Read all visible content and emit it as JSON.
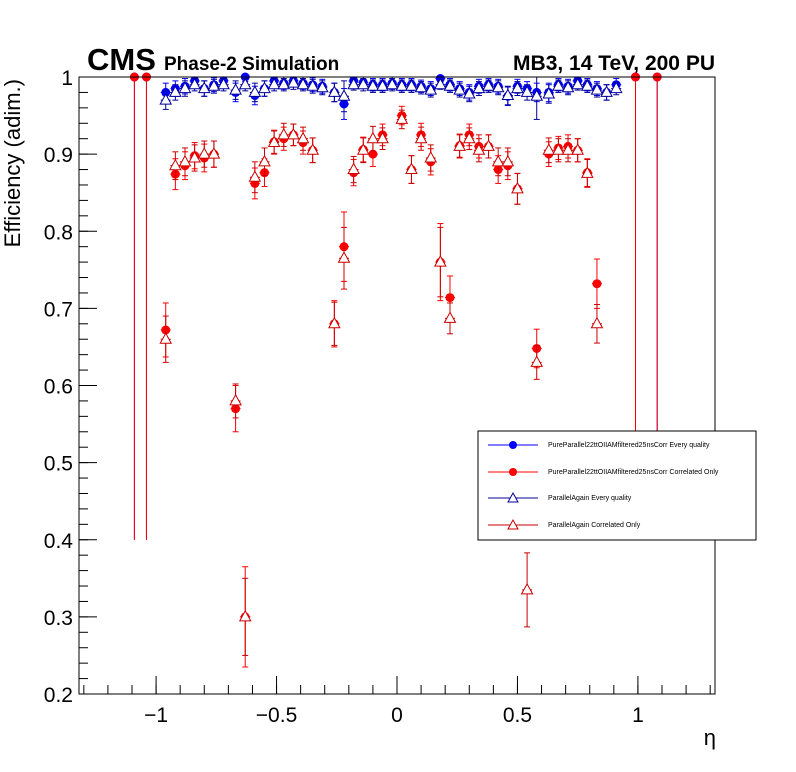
{
  "header": {
    "experiment": "CMS",
    "subtitle": "Phase-2 Simulation",
    "info": "MB3, 14 TeV, 200 PU"
  },
  "colors": {
    "blue": "#0000ff",
    "navy": "#000099",
    "red": "#ff0000",
    "darkred": "#cc0000"
  },
  "chart_data": {
    "type": "scatter",
    "title": "",
    "xlabel": "η",
    "ylabel": "Efficiency (adim.)",
    "xlim": [
      -1.32,
      1.32
    ],
    "ylim": [
      0.2,
      1.0
    ],
    "x_ticks": [
      -1,
      -0.5,
      0,
      0.5,
      1
    ],
    "x_tick_labels": [
      "−1",
      "−0.5",
      "0",
      "0.5",
      "1"
    ],
    "y_ticks": [
      0.2,
      0.3,
      0.4,
      0.5,
      0.6,
      0.7,
      0.8,
      0.9,
      1.0
    ],
    "y_tick_labels": [
      "0.2",
      "0.3",
      "0.4",
      "0.5",
      "0.6",
      "0.7",
      "0.8",
      "0.9",
      "1"
    ],
    "legend_position": "right-middle",
    "series": [
      {
        "name": "PureParallel22ttOIIAMfiltered25nsCorr Every quality",
        "marker": "circle",
        "color": "#0000ff",
        "points": [
          {
            "x": -1.09,
            "y": 1.0,
            "err": 0.6
          },
          {
            "x": -1.04,
            "y": 1.0,
            "err": 0.6
          },
          {
            "x": -0.96,
            "y": 0.98,
            "err": 0.012
          },
          {
            "x": -0.92,
            "y": 0.985,
            "err": 0.01
          },
          {
            "x": -0.88,
            "y": 0.988,
            "err": 0.01
          },
          {
            "x": -0.84,
            "y": 0.995,
            "err": 0.008
          },
          {
            "x": -0.8,
            "y": 0.985,
            "err": 0.01
          },
          {
            "x": -0.76,
            "y": 0.99,
            "err": 0.009
          },
          {
            "x": -0.72,
            "y": 0.995,
            "err": 0.008
          },
          {
            "x": -0.67,
            "y": 0.98,
            "err": 0.012
          },
          {
            "x": -0.63,
            "y": 1.0,
            "err": 0.006
          },
          {
            "x": -0.59,
            "y": 0.976,
            "err": 0.012
          },
          {
            "x": -0.55,
            "y": 0.985,
            "err": 0.01
          },
          {
            "x": -0.51,
            "y": 0.995,
            "err": 0.008
          },
          {
            "x": -0.47,
            "y": 0.992,
            "err": 0.008
          },
          {
            "x": -0.43,
            "y": 0.995,
            "err": 0.008
          },
          {
            "x": -0.39,
            "y": 0.992,
            "err": 0.008
          },
          {
            "x": -0.35,
            "y": 0.99,
            "err": 0.009
          },
          {
            "x": -0.31,
            "y": 0.988,
            "err": 0.009
          },
          {
            "x": -0.26,
            "y": 0.98,
            "err": 0.012
          },
          {
            "x": -0.22,
            "y": 0.965,
            "err": 0.02
          },
          {
            "x": -0.18,
            "y": 0.995,
            "err": 0.006
          },
          {
            "x": -0.14,
            "y": 0.993,
            "err": 0.008
          },
          {
            "x": -0.1,
            "y": 0.99,
            "err": 0.008
          },
          {
            "x": -0.06,
            "y": 0.99,
            "err": 0.008
          },
          {
            "x": -0.02,
            "y": 0.992,
            "err": 0.008
          },
          {
            "x": 0.02,
            "y": 0.99,
            "err": 0.008
          },
          {
            "x": 0.06,
            "y": 0.99,
            "err": 0.008
          },
          {
            "x": 0.1,
            "y": 0.988,
            "err": 0.008
          },
          {
            "x": 0.14,
            "y": 0.985,
            "err": 0.009
          },
          {
            "x": 0.18,
            "y": 0.998,
            "err": 0.005
          },
          {
            "x": 0.22,
            "y": 0.99,
            "err": 0.008
          },
          {
            "x": 0.26,
            "y": 0.985,
            "err": 0.009
          },
          {
            "x": 0.3,
            "y": 0.98,
            "err": 0.01
          },
          {
            "x": 0.34,
            "y": 0.988,
            "err": 0.009
          },
          {
            "x": 0.38,
            "y": 0.99,
            "err": 0.008
          },
          {
            "x": 0.42,
            "y": 0.988,
            "err": 0.009
          },
          {
            "x": 0.46,
            "y": 0.975,
            "err": 0.012
          },
          {
            "x": 0.5,
            "y": 0.988,
            "err": 0.009
          },
          {
            "x": 0.54,
            "y": 0.985,
            "err": 0.009
          },
          {
            "x": 0.58,
            "y": 0.98,
            "err": 0.012
          },
          {
            "x": 0.63,
            "y": 0.98,
            "err": 0.012
          },
          {
            "x": 0.67,
            "y": 0.99,
            "err": 0.008
          },
          {
            "x": 0.71,
            "y": 0.988,
            "err": 0.009
          },
          {
            "x": 0.75,
            "y": 0.995,
            "err": 0.007
          },
          {
            "x": 0.79,
            "y": 0.99,
            "err": 0.008
          },
          {
            "x": 0.83,
            "y": 0.985,
            "err": 0.009
          },
          {
            "x": 0.87,
            "y": 0.98,
            "err": 0.01
          },
          {
            "x": 0.91,
            "y": 0.99,
            "err": 0.008
          },
          {
            "x": 0.99,
            "y": 1.0,
            "err": 0.6
          },
          {
            "x": 1.08,
            "y": 1.0,
            "err": 0.6
          }
        ]
      },
      {
        "name": "PureParallel22ttOIIAMfiltered25nsCorr Correlated Only",
        "marker": "circle",
        "color": "#ff0000",
        "points": [
          {
            "x": -1.09,
            "y": 1.0,
            "err": 0.6
          },
          {
            "x": -1.04,
            "y": 1.0,
            "err": 0.6
          },
          {
            "x": -0.96,
            "y": 0.672,
            "err": 0.035
          },
          {
            "x": -0.92,
            "y": 0.874,
            "err": 0.02
          },
          {
            "x": -0.88,
            "y": 0.885,
            "err": 0.018
          },
          {
            "x": -0.84,
            "y": 0.898,
            "err": 0.017
          },
          {
            "x": -0.8,
            "y": 0.895,
            "err": 0.018
          },
          {
            "x": -0.76,
            "y": 0.9,
            "err": 0.017
          },
          {
            "x": -0.67,
            "y": 0.57,
            "err": 0.03
          },
          {
            "x": -0.63,
            "y": 0.3,
            "err": 0.065
          },
          {
            "x": -0.59,
            "y": 0.862,
            "err": 0.02
          },
          {
            "x": -0.55,
            "y": 0.876,
            "err": 0.018
          },
          {
            "x": -0.51,
            "y": 0.916,
            "err": 0.015
          },
          {
            "x": -0.47,
            "y": 0.92,
            "err": 0.015
          },
          {
            "x": -0.43,
            "y": 0.925,
            "err": 0.014
          },
          {
            "x": -0.39,
            "y": 0.915,
            "err": 0.015
          },
          {
            "x": -0.35,
            "y": 0.905,
            "err": 0.016
          },
          {
            "x": -0.26,
            "y": 0.68,
            "err": 0.03
          },
          {
            "x": -0.22,
            "y": 0.78,
            "err": 0.045
          },
          {
            "x": -0.18,
            "y": 0.876,
            "err": 0.017
          },
          {
            "x": -0.14,
            "y": 0.906,
            "err": 0.016
          },
          {
            "x": -0.1,
            "y": 0.9,
            "err": 0.016
          },
          {
            "x": -0.06,
            "y": 0.925,
            "err": 0.014
          },
          {
            "x": 0.02,
            "y": 0.95,
            "err": 0.012
          },
          {
            "x": 0.06,
            "y": 0.88,
            "err": 0.018
          },
          {
            "x": 0.1,
            "y": 0.925,
            "err": 0.015
          },
          {
            "x": 0.14,
            "y": 0.89,
            "err": 0.017
          },
          {
            "x": 0.18,
            "y": 0.76,
            "err": 0.05
          },
          {
            "x": 0.22,
            "y": 0.714,
            "err": 0.028
          },
          {
            "x": 0.26,
            "y": 0.911,
            "err": 0.015
          },
          {
            "x": 0.3,
            "y": 0.925,
            "err": 0.014
          },
          {
            "x": 0.34,
            "y": 0.91,
            "err": 0.015
          },
          {
            "x": 0.38,
            "y": 0.91,
            "err": 0.015
          },
          {
            "x": 0.42,
            "y": 0.88,
            "err": 0.018
          },
          {
            "x": 0.46,
            "y": 0.885,
            "err": 0.018
          },
          {
            "x": 0.5,
            "y": 0.855,
            "err": 0.02
          },
          {
            "x": 0.58,
            "y": 0.648,
            "err": 0.025
          },
          {
            "x": 0.63,
            "y": 0.9,
            "err": 0.016
          },
          {
            "x": 0.67,
            "y": 0.908,
            "err": 0.015
          },
          {
            "x": 0.71,
            "y": 0.91,
            "err": 0.015
          },
          {
            "x": 0.75,
            "y": 0.905,
            "err": 0.015
          },
          {
            "x": 0.79,
            "y": 0.876,
            "err": 0.018
          },
          {
            "x": 0.83,
            "y": 0.732,
            "err": 0.032
          },
          {
            "x": 0.99,
            "y": 1.0,
            "err": 0.6
          },
          {
            "x": 1.08,
            "y": 1.0,
            "err": 0.6
          }
        ]
      },
      {
        "name": "ParallelAgain Every quality",
        "marker": "triangle-open",
        "color": "#000099",
        "points": [
          {
            "x": -0.96,
            "y": 0.97,
            "err": 0.012
          },
          {
            "x": -0.92,
            "y": 0.98,
            "err": 0.01
          },
          {
            "x": -0.88,
            "y": 0.985,
            "err": 0.01
          },
          {
            "x": -0.84,
            "y": 0.99,
            "err": 0.008
          },
          {
            "x": -0.8,
            "y": 0.985,
            "err": 0.01
          },
          {
            "x": -0.76,
            "y": 0.988,
            "err": 0.009
          },
          {
            "x": -0.72,
            "y": 0.99,
            "err": 0.008
          },
          {
            "x": -0.67,
            "y": 0.983,
            "err": 0.012
          },
          {
            "x": -0.63,
            "y": 0.99,
            "err": 0.008
          },
          {
            "x": -0.59,
            "y": 0.98,
            "err": 0.012
          },
          {
            "x": -0.55,
            "y": 0.985,
            "err": 0.01
          },
          {
            "x": -0.51,
            "y": 0.99,
            "err": 0.008
          },
          {
            "x": -0.47,
            "y": 0.99,
            "err": 0.008
          },
          {
            "x": -0.43,
            "y": 0.992,
            "err": 0.008
          },
          {
            "x": -0.39,
            "y": 0.99,
            "err": 0.008
          },
          {
            "x": -0.35,
            "y": 0.988,
            "err": 0.009
          },
          {
            "x": -0.31,
            "y": 0.986,
            "err": 0.009
          },
          {
            "x": -0.26,
            "y": 0.98,
            "err": 0.012
          },
          {
            "x": -0.22,
            "y": 0.975,
            "err": 0.02
          },
          {
            "x": -0.18,
            "y": 0.99,
            "err": 0.007
          },
          {
            "x": -0.14,
            "y": 0.99,
            "err": 0.008
          },
          {
            "x": -0.1,
            "y": 0.988,
            "err": 0.008
          },
          {
            "x": -0.06,
            "y": 0.988,
            "err": 0.008
          },
          {
            "x": -0.02,
            "y": 0.99,
            "err": 0.008
          },
          {
            "x": 0.02,
            "y": 0.988,
            "err": 0.008
          },
          {
            "x": 0.06,
            "y": 0.988,
            "err": 0.008
          },
          {
            "x": 0.1,
            "y": 0.986,
            "err": 0.008
          },
          {
            "x": 0.14,
            "y": 0.983,
            "err": 0.009
          },
          {
            "x": 0.18,
            "y": 0.99,
            "err": 0.006
          },
          {
            "x": 0.22,
            "y": 0.988,
            "err": 0.008
          },
          {
            "x": 0.26,
            "y": 0.983,
            "err": 0.009
          },
          {
            "x": 0.3,
            "y": 0.978,
            "err": 0.01
          },
          {
            "x": 0.34,
            "y": 0.985,
            "err": 0.009
          },
          {
            "x": 0.38,
            "y": 0.988,
            "err": 0.008
          },
          {
            "x": 0.42,
            "y": 0.986,
            "err": 0.009
          },
          {
            "x": 0.46,
            "y": 0.976,
            "err": 0.012
          },
          {
            "x": 0.5,
            "y": 0.985,
            "err": 0.009
          },
          {
            "x": 0.54,
            "y": 0.98,
            "err": 0.01
          },
          {
            "x": 0.58,
            "y": 0.975,
            "err": 0.03
          },
          {
            "x": 0.63,
            "y": 0.978,
            "err": 0.012
          },
          {
            "x": 0.67,
            "y": 0.988,
            "err": 0.008
          },
          {
            "x": 0.71,
            "y": 0.986,
            "err": 0.009
          },
          {
            "x": 0.75,
            "y": 0.99,
            "err": 0.007
          },
          {
            "x": 0.79,
            "y": 0.988,
            "err": 0.008
          },
          {
            "x": 0.83,
            "y": 0.983,
            "err": 0.009
          },
          {
            "x": 0.87,
            "y": 0.98,
            "err": 0.01
          },
          {
            "x": 0.91,
            "y": 0.985,
            "err": 0.008
          }
        ]
      },
      {
        "name": "ParallelAgain Correlated Only",
        "marker": "triangle-open",
        "color": "#cc0000",
        "points": [
          {
            "x": -0.96,
            "y": 0.66,
            "err": 0.03
          },
          {
            "x": -0.92,
            "y": 0.885,
            "err": 0.018
          },
          {
            "x": -0.88,
            "y": 0.89,
            "err": 0.018
          },
          {
            "x": -0.84,
            "y": 0.895,
            "err": 0.017
          },
          {
            "x": -0.8,
            "y": 0.9,
            "err": 0.017
          },
          {
            "x": -0.76,
            "y": 0.9,
            "err": 0.017
          },
          {
            "x": -0.67,
            "y": 0.58,
            "err": 0.022
          },
          {
            "x": -0.63,
            "y": 0.3,
            "err": 0.05
          },
          {
            "x": -0.59,
            "y": 0.87,
            "err": 0.02
          },
          {
            "x": -0.55,
            "y": 0.89,
            "err": 0.018
          },
          {
            "x": -0.51,
            "y": 0.915,
            "err": 0.015
          },
          {
            "x": -0.47,
            "y": 0.925,
            "err": 0.015
          },
          {
            "x": -0.43,
            "y": 0.925,
            "err": 0.014
          },
          {
            "x": -0.39,
            "y": 0.92,
            "err": 0.015
          },
          {
            "x": -0.35,
            "y": 0.905,
            "err": 0.016
          },
          {
            "x": -0.26,
            "y": 0.68,
            "err": 0.028
          },
          {
            "x": -0.22,
            "y": 0.765,
            "err": 0.04
          },
          {
            "x": -0.18,
            "y": 0.88,
            "err": 0.017
          },
          {
            "x": -0.14,
            "y": 0.905,
            "err": 0.016
          },
          {
            "x": -0.1,
            "y": 0.92,
            "err": 0.016
          },
          {
            "x": -0.06,
            "y": 0.92,
            "err": 0.014
          },
          {
            "x": 0.02,
            "y": 0.945,
            "err": 0.012
          },
          {
            "x": 0.06,
            "y": 0.88,
            "err": 0.018
          },
          {
            "x": 0.1,
            "y": 0.92,
            "err": 0.015
          },
          {
            "x": 0.14,
            "y": 0.895,
            "err": 0.017
          },
          {
            "x": 0.18,
            "y": 0.76,
            "err": 0.045
          },
          {
            "x": 0.22,
            "y": 0.687,
            "err": 0.02
          },
          {
            "x": 0.26,
            "y": 0.91,
            "err": 0.015
          },
          {
            "x": 0.3,
            "y": 0.92,
            "err": 0.014
          },
          {
            "x": 0.34,
            "y": 0.905,
            "err": 0.015
          },
          {
            "x": 0.38,
            "y": 0.91,
            "err": 0.015
          },
          {
            "x": 0.42,
            "y": 0.89,
            "err": 0.018
          },
          {
            "x": 0.46,
            "y": 0.89,
            "err": 0.018
          },
          {
            "x": 0.5,
            "y": 0.855,
            "err": 0.02
          },
          {
            "x": 0.54,
            "y": 0.335,
            "err": 0.048
          },
          {
            "x": 0.58,
            "y": 0.63,
            "err": 0.022
          },
          {
            "x": 0.63,
            "y": 0.905,
            "err": 0.016
          },
          {
            "x": 0.67,
            "y": 0.905,
            "err": 0.015
          },
          {
            "x": 0.71,
            "y": 0.905,
            "err": 0.015
          },
          {
            "x": 0.75,
            "y": 0.905,
            "err": 0.015
          },
          {
            "x": 0.79,
            "y": 0.875,
            "err": 0.018
          },
          {
            "x": 0.83,
            "y": 0.68,
            "err": 0.025
          }
        ]
      }
    ]
  }
}
